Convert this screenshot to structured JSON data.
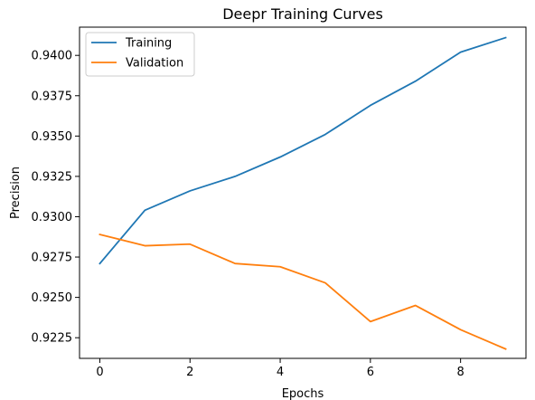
{
  "chart_data": {
    "type": "line",
    "title": "Deepr Training Curves",
    "xlabel": "Epochs",
    "ylabel": "Precision",
    "x": [
      0,
      1,
      2,
      3,
      4,
      5,
      6,
      7,
      8,
      9
    ],
    "xlim": [
      -0.45,
      9.45
    ],
    "ylim": [
      0.92122,
      0.94175
    ],
    "xticks": [
      0,
      2,
      4,
      6,
      8
    ],
    "yticks": [
      0.9225,
      0.925,
      0.9275,
      0.93,
      0.9325,
      0.935,
      0.9375,
      0.94
    ],
    "ytick_labels": [
      "0.9225",
      "0.9250",
      "0.9275",
      "0.9300",
      "0.9325",
      "0.9350",
      "0.9375",
      "0.9400"
    ],
    "grid": false,
    "legend_position": "top-left",
    "series": [
      {
        "name": "Training",
        "color": "#1f77b4",
        "values": [
          0.9271,
          0.9304,
          0.9316,
          0.9325,
          0.9337,
          0.9351,
          0.9369,
          0.9384,
          0.9402,
          0.9411
        ]
      },
      {
        "name": "Validation",
        "color": "#ff7f0e",
        "values": [
          0.9289,
          0.9282,
          0.9283,
          0.9271,
          0.9269,
          0.9259,
          0.9235,
          0.9245,
          0.923,
          0.9218
        ]
      }
    ]
  }
}
